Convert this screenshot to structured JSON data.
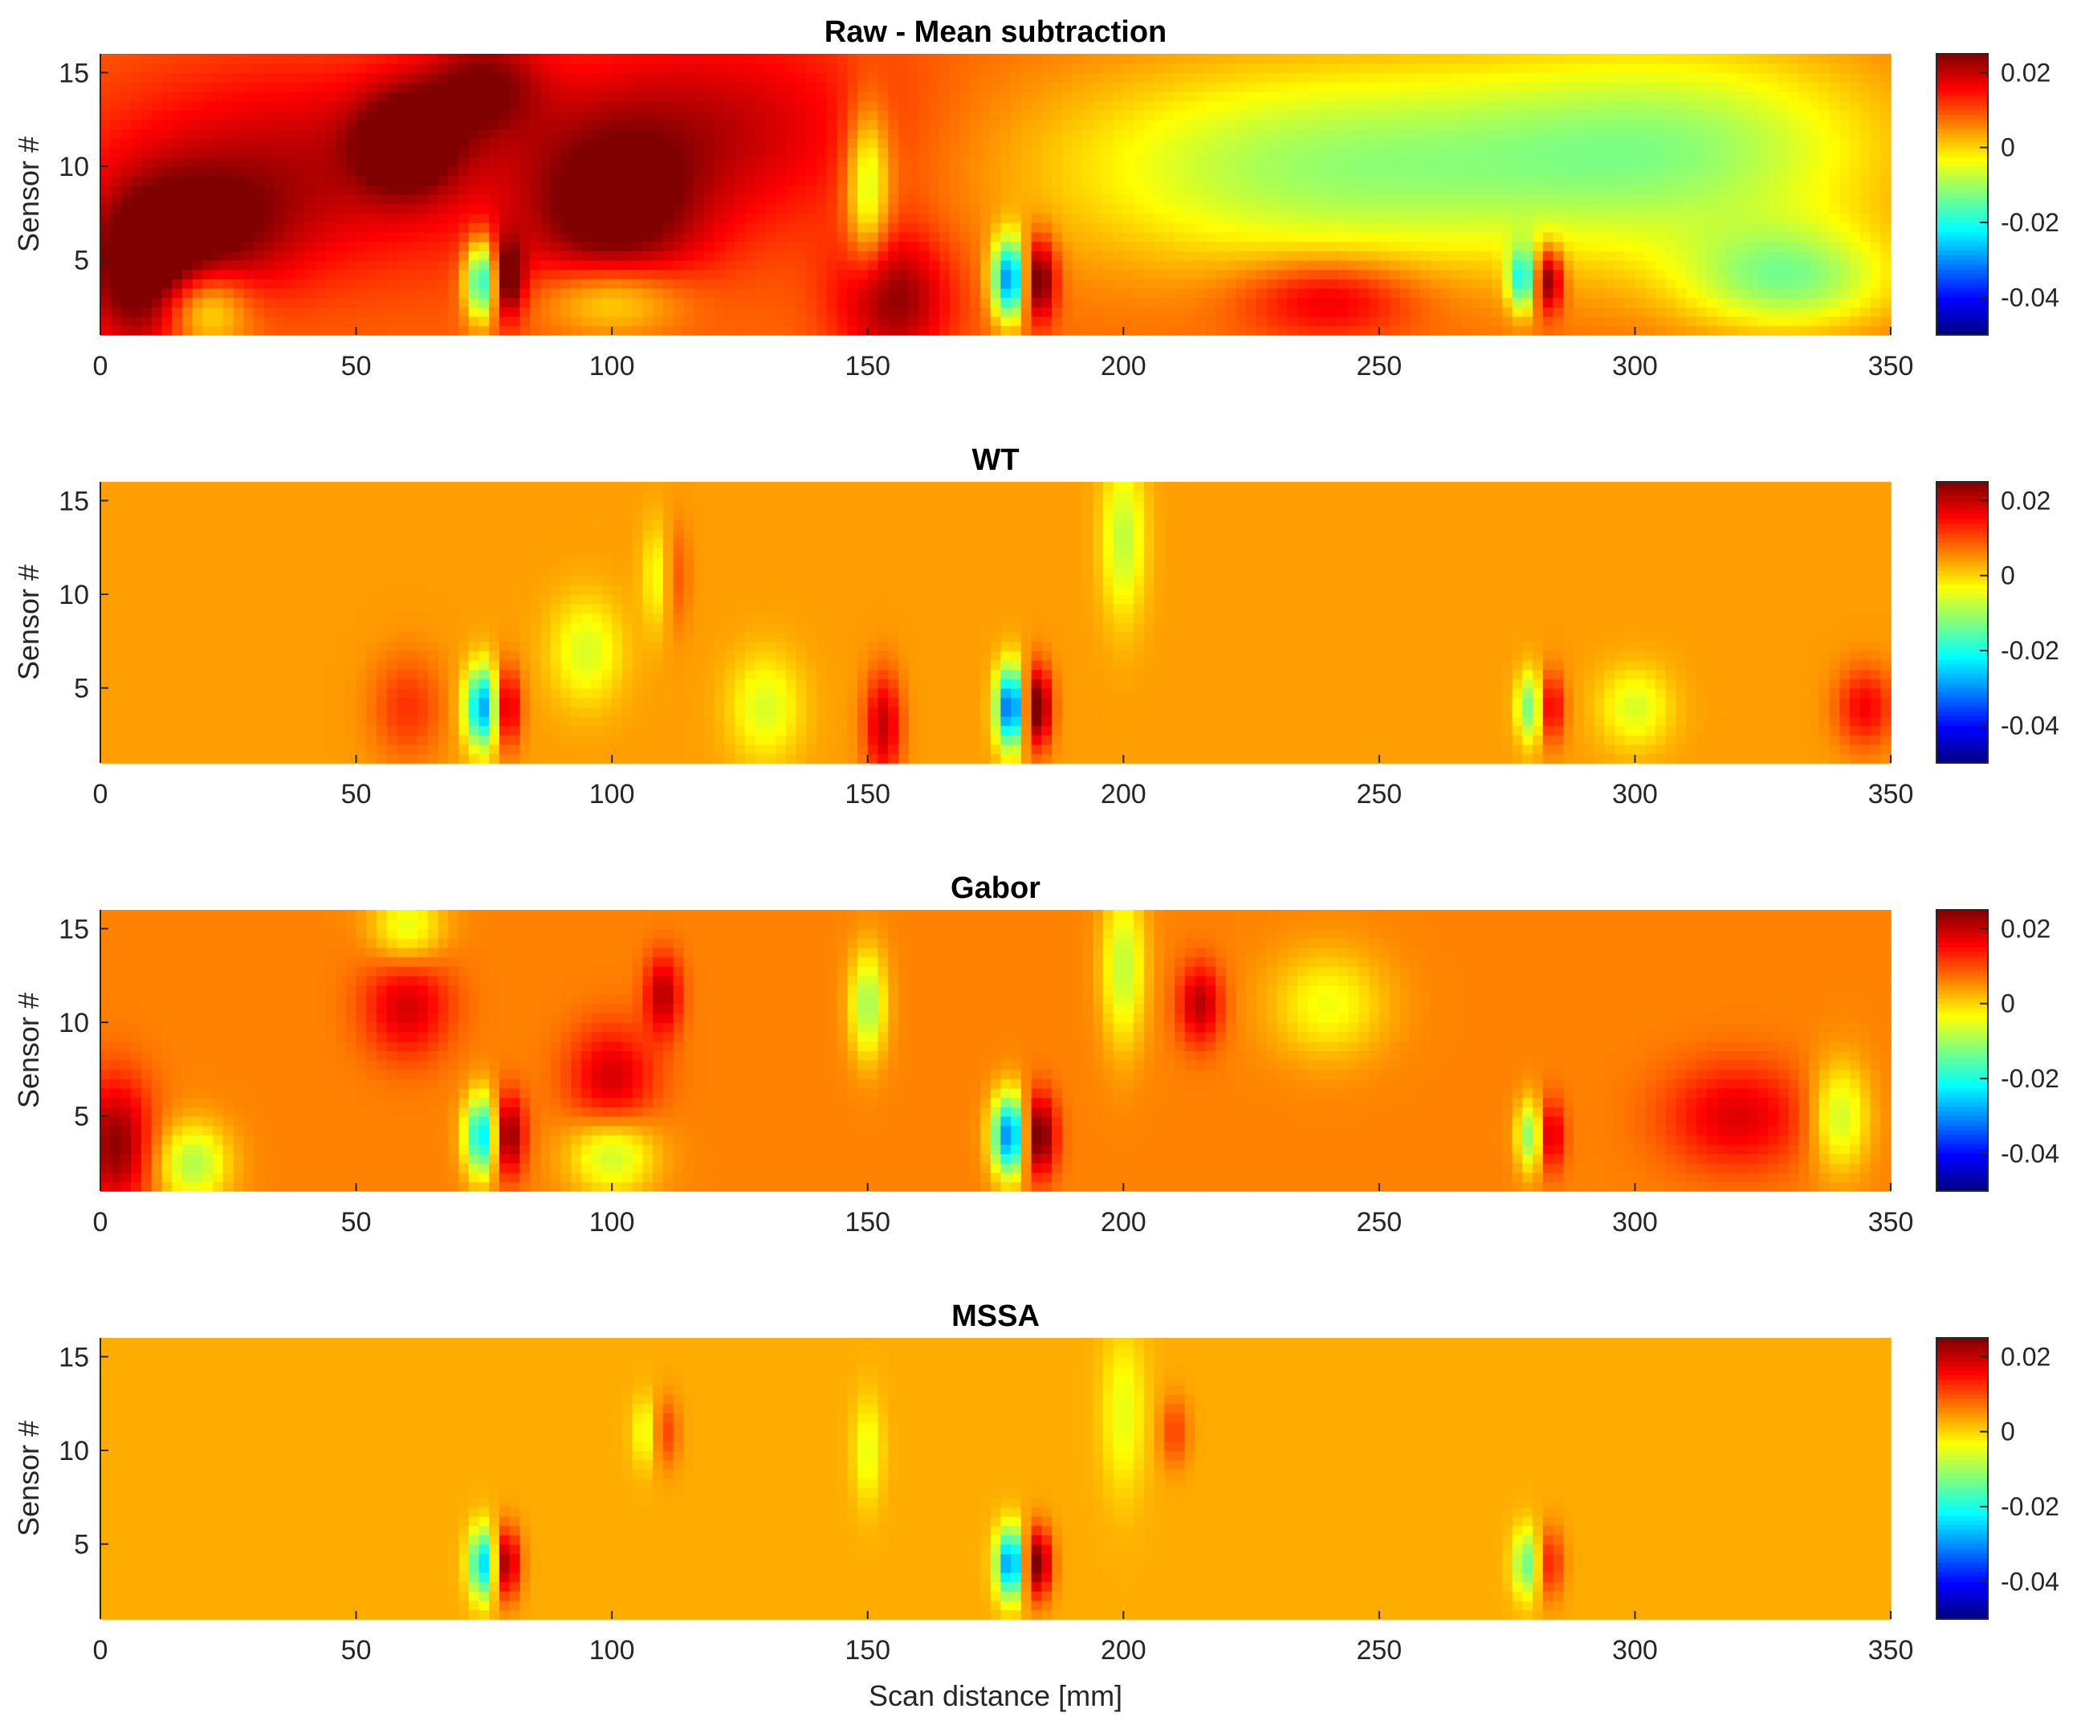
{
  "chart_data": [
    {
      "type": "heatmap",
      "title": "Raw - Mean subtraction",
      "xlabel": "",
      "ylabel": "Sensor #",
      "xlim": [
        0,
        350
      ],
      "ylim": [
        1,
        16
      ],
      "x_ticks": [
        "0",
        "50",
        "100",
        "150",
        "200",
        "250",
        "300",
        "350"
      ],
      "y_ticks": [
        "5",
        "10",
        "15"
      ],
      "colorbar": {
        "colormap": "jet",
        "range": [
          -0.05,
          0.025
        ],
        "ticks": [
          "0.02",
          "0",
          "-0.02",
          "-0.04"
        ]
      },
      "background": 0.008,
      "blobs": [
        {
          "x": 8,
          "y": 4,
          "sx": 8,
          "sy": 3,
          "v": 0.018
        },
        {
          "x": 20,
          "y": 6.5,
          "sx": 12,
          "sy": 2.5,
          "v": 0.013
        },
        {
          "x": 40,
          "y": 10,
          "sx": 30,
          "sy": 4,
          "v": 0.012
        },
        {
          "x": 60,
          "y": 11.5,
          "sx": 7,
          "sy": 2,
          "v": 0.018
        },
        {
          "x": 75,
          "y": 14.5,
          "sx": 8,
          "sy": 2,
          "v": 0.013
        },
        {
          "x": 100,
          "y": 7,
          "sx": 12,
          "sy": 3.5,
          "v": 0.017
        },
        {
          "x": 120,
          "y": 12,
          "sx": 25,
          "sy": 4,
          "v": 0.012
        },
        {
          "x": 155,
          "y": 3,
          "sx": 8,
          "sy": 2.5,
          "v": 0.016
        },
        {
          "x": 20,
          "y": 2.5,
          "sx": 6,
          "sy": 1.5,
          "v": -0.016
        },
        {
          "x": 75,
          "y": 4,
          "sx": 2.5,
          "sy": 1.5,
          "v": -0.035
        },
        {
          "x": 79,
          "y": 4,
          "sx": 2.5,
          "sy": 1.5,
          "v": 0.025
        },
        {
          "x": 100,
          "y": 3,
          "sx": 10,
          "sy": 1.5,
          "v": -0.016
        },
        {
          "x": 150,
          "y": 9,
          "sx": 3,
          "sy": 3,
          "v": -0.017
        },
        {
          "x": 178,
          "y": 4,
          "sx": 2.5,
          "sy": 1.5,
          "v": -0.04
        },
        {
          "x": 183,
          "y": 4,
          "sx": 2.5,
          "sy": 1.5,
          "v": 0.025
        },
        {
          "x": 240,
          "y": 10,
          "sx": 40,
          "sy": 4,
          "v": -0.018
        },
        {
          "x": 310,
          "y": 11,
          "sx": 30,
          "sy": 4,
          "v": -0.016
        },
        {
          "x": 330,
          "y": 4,
          "sx": 15,
          "sy": 2,
          "v": -0.018
        },
        {
          "x": 240,
          "y": 3,
          "sx": 12,
          "sy": 1.5,
          "v": 0.012
        },
        {
          "x": 283,
          "y": 4,
          "sx": 2,
          "sy": 1.2,
          "v": 0.022
        },
        {
          "x": 278,
          "y": 4,
          "sx": 2,
          "sy": 1.2,
          "v": -0.025
        }
      ]
    },
    {
      "type": "heatmap",
      "title": "WT",
      "xlabel": "",
      "ylabel": "Sensor #",
      "xlim": [
        0,
        350
      ],
      "ylim": [
        1,
        16
      ],
      "x_ticks": [
        "0",
        "50",
        "100",
        "150",
        "200",
        "250",
        "300",
        "350"
      ],
      "y_ticks": [
        "5",
        "10",
        "15"
      ],
      "colorbar": {
        "colormap": "jet",
        "range": [
          -0.05,
          0.025
        ],
        "ticks": [
          "0.02",
          "0",
          "-0.02",
          "-0.04"
        ]
      },
      "background": 0.004,
      "blobs": [
        {
          "x": 60,
          "y": 4,
          "sx": 5,
          "sy": 2,
          "v": 0.008
        },
        {
          "x": 75,
          "y": 4,
          "sx": 2.5,
          "sy": 1.5,
          "v": -0.035
        },
        {
          "x": 79,
          "y": 4,
          "sx": 2,
          "sy": 1.5,
          "v": 0.022
        },
        {
          "x": 95,
          "y": 7,
          "sx": 5,
          "sy": 2,
          "v": -0.01
        },
        {
          "x": 110,
          "y": 11,
          "sx": 2.5,
          "sy": 2,
          "v": -0.012
        },
        {
          "x": 112,
          "y": 11,
          "sx": 2,
          "sy": 2,
          "v": 0.012
        },
        {
          "x": 130,
          "y": 4,
          "sx": 5,
          "sy": 2,
          "v": -0.01
        },
        {
          "x": 153,
          "y": 3,
          "sx": 2.5,
          "sy": 2,
          "v": 0.016
        },
        {
          "x": 178,
          "y": 4,
          "sx": 2,
          "sy": 1.5,
          "v": -0.04
        },
        {
          "x": 183,
          "y": 4,
          "sx": 2,
          "sy": 1.5,
          "v": 0.025
        },
        {
          "x": 200,
          "y": 13,
          "sx": 3,
          "sy": 3,
          "v": -0.012
        },
        {
          "x": 280,
          "y": 4,
          "sx": 2,
          "sy": 1.3,
          "v": -0.022
        },
        {
          "x": 283,
          "y": 4,
          "sx": 2,
          "sy": 1.3,
          "v": 0.018
        },
        {
          "x": 300,
          "y": 4,
          "sx": 5,
          "sy": 1.5,
          "v": -0.01
        },
        {
          "x": 345,
          "y": 4,
          "sx": 4,
          "sy": 1.5,
          "v": 0.012
        }
      ]
    },
    {
      "type": "heatmap",
      "title": "Gabor",
      "xlabel": "",
      "ylabel": "Sensor #",
      "xlim": [
        0,
        350
      ],
      "ylim": [
        1,
        16
      ],
      "x_ticks": [
        "0",
        "50",
        "100",
        "150",
        "200",
        "250",
        "300",
        "350"
      ],
      "y_ticks": [
        "5",
        "10",
        "15"
      ],
      "colorbar": {
        "colormap": "jet",
        "range": [
          -0.05,
          0.025
        ],
        "ticks": [
          "0.02",
          "0",
          "-0.02",
          "-0.04"
        ]
      },
      "background": 0.006,
      "blobs": [
        {
          "x": 3,
          "y": 3.5,
          "sx": 5,
          "sy": 2.5,
          "v": 0.018
        },
        {
          "x": 18,
          "y": 2.5,
          "sx": 5,
          "sy": 1.5,
          "v": -0.015
        },
        {
          "x": 60,
          "y": 11,
          "sx": 6,
          "sy": 2,
          "v": 0.013
        },
        {
          "x": 60,
          "y": 15,
          "sx": 5,
          "sy": 1.5,
          "v": -0.012
        },
        {
          "x": 75,
          "y": 4,
          "sx": 2.5,
          "sy": 1.5,
          "v": -0.035
        },
        {
          "x": 79,
          "y": 4,
          "sx": 2.5,
          "sy": 1.5,
          "v": 0.025
        },
        {
          "x": 100,
          "y": 3,
          "sx": 6,
          "sy": 1.5,
          "v": -0.014
        },
        {
          "x": 100,
          "y": 7,
          "sx": 6,
          "sy": 2,
          "v": 0.013
        },
        {
          "x": 110,
          "y": 11.5,
          "sx": 2.5,
          "sy": 1.5,
          "v": 0.015
        },
        {
          "x": 150,
          "y": 11,
          "sx": 2.5,
          "sy": 2,
          "v": -0.016
        },
        {
          "x": 178,
          "y": 4,
          "sx": 2.5,
          "sy": 1.5,
          "v": -0.04
        },
        {
          "x": 183,
          "y": 4,
          "sx": 2.5,
          "sy": 1.5,
          "v": 0.025
        },
        {
          "x": 200,
          "y": 13,
          "sx": 3,
          "sy": 3,
          "v": -0.014
        },
        {
          "x": 215,
          "y": 11,
          "sx": 3,
          "sy": 1.5,
          "v": 0.015
        },
        {
          "x": 240,
          "y": 11,
          "sx": 8,
          "sy": 2,
          "v": -0.01
        },
        {
          "x": 280,
          "y": 4,
          "sx": 2,
          "sy": 1.3,
          "v": -0.022
        },
        {
          "x": 283,
          "y": 4,
          "sx": 2,
          "sy": 1.3,
          "v": 0.018
        },
        {
          "x": 320,
          "y": 5,
          "sx": 10,
          "sy": 2,
          "v": 0.012
        },
        {
          "x": 340,
          "y": 5,
          "sx": 4,
          "sy": 2,
          "v": -0.014
        }
      ]
    },
    {
      "type": "heatmap",
      "title": "MSSA",
      "xlabel": "Scan distance [mm]",
      "ylabel": "Sensor #",
      "xlim": [
        0,
        350
      ],
      "ylim": [
        1,
        16
      ],
      "x_ticks": [
        "0",
        "50",
        "100",
        "150",
        "200",
        "250",
        "300",
        "350"
      ],
      "y_ticks": [
        "5",
        "10",
        "15"
      ],
      "colorbar": {
        "colormap": "jet",
        "range": [
          -0.05,
          0.025
        ],
        "ticks": [
          "0.02",
          "0",
          "-0.02",
          "-0.04"
        ]
      },
      "background": 0.003,
      "blobs": [
        {
          "x": 75,
          "y": 4,
          "sx": 2,
          "sy": 1.3,
          "v": -0.03
        },
        {
          "x": 79,
          "y": 4,
          "sx": 2,
          "sy": 1.3,
          "v": 0.022
        },
        {
          "x": 107,
          "y": 11,
          "sx": 2,
          "sy": 1.3,
          "v": -0.01
        },
        {
          "x": 110,
          "y": 11,
          "sx": 2,
          "sy": 1.3,
          "v": 0.01
        },
        {
          "x": 150,
          "y": 10,
          "sx": 2,
          "sy": 2,
          "v": -0.008
        },
        {
          "x": 178,
          "y": 4,
          "sx": 2,
          "sy": 1.3,
          "v": -0.035
        },
        {
          "x": 183,
          "y": 4,
          "sx": 2,
          "sy": 1.3,
          "v": 0.024
        },
        {
          "x": 200,
          "y": 12,
          "sx": 3,
          "sy": 3,
          "v": -0.008
        },
        {
          "x": 210,
          "y": 11,
          "sx": 2,
          "sy": 1.3,
          "v": 0.008
        },
        {
          "x": 279,
          "y": 4,
          "sx": 2,
          "sy": 1.3,
          "v": -0.018
        },
        {
          "x": 283,
          "y": 4,
          "sx": 2,
          "sy": 1.3,
          "v": 0.012
        }
      ]
    }
  ]
}
